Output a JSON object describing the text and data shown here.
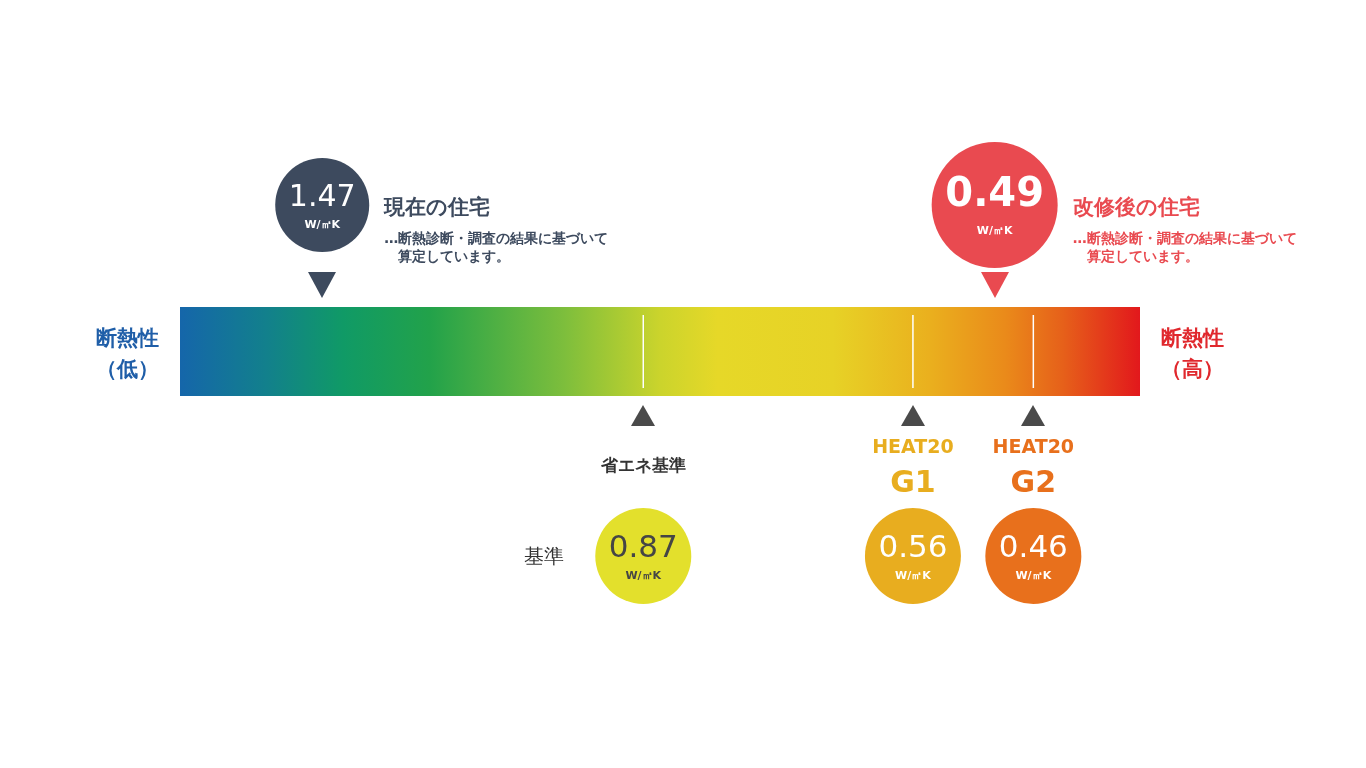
{
  "chart_data": {
    "type": "other",
    "categories": [
      "現在の住宅",
      "改修後の住宅",
      "省エネ基準",
      "HEAT20 G1",
      "HEAT20 G2"
    ],
    "series": [
      {
        "values": [
          1.47,
          0.49,
          null,
          null,
          null
        ],
        "colors": [
          "#3d4a5e",
          "#e94a50",
          null,
          null,
          null
        ]
      },
      {
        "name": "基準",
        "values": [
          null,
          null,
          0.87,
          0.56,
          0.46
        ],
        "colors": [
          null,
          null,
          "#e3e02c",
          "#e8ad1f",
          "#e8701c"
        ]
      }
    ],
    "data_labels": true,
    "xlabel": "W/㎡K",
    "annotations": [
      "断熱性（低）",
      "断熱性（高）",
      "…断熱診断・調査の結果に基づいて算定しています。",
      "…断熱診断・調査の結果に基づいて算定しています。"
    ]
  }
}
